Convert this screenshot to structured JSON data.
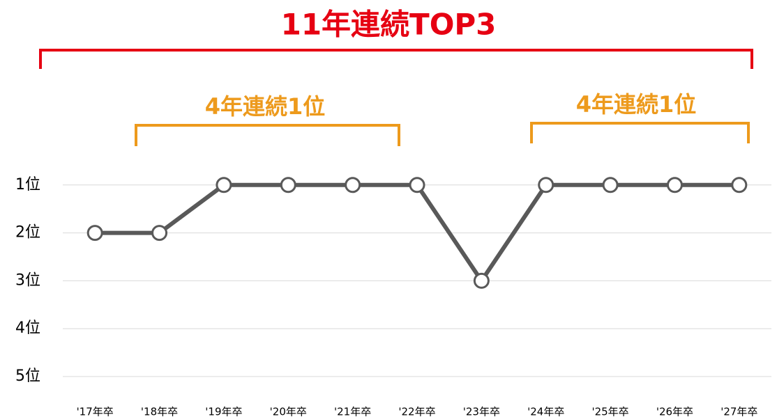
{
  "chart_data": {
    "type": "line",
    "title": "11年連続TOP3",
    "annotations": [
      "4年連続1位",
      "4年連続1位"
    ],
    "categories": [
      "'17年卒",
      "'18年卒",
      "'19年卒",
      "'20年卒",
      "'21年卒",
      "'22年卒",
      "'23年卒",
      "'24年卒",
      "'25年卒",
      "'26年卒",
      "'27年卒"
    ],
    "series": [
      {
        "name": "順位",
        "color": "#595959",
        "values": [
          2,
          2,
          1,
          1,
          1,
          1,
          3,
          1,
          1,
          1,
          1
        ]
      }
    ],
    "ylim": [
      5,
      0
    ],
    "y_inverted": true,
    "yticks": [
      {
        "value": 1,
        "label": "1位"
      },
      {
        "value": 2,
        "label": "2位"
      },
      {
        "value": 3,
        "label": "3位"
      },
      {
        "value": 4,
        "label": "4位"
      },
      {
        "value": 5,
        "label": "5位"
      }
    ],
    "grid": true
  }
}
